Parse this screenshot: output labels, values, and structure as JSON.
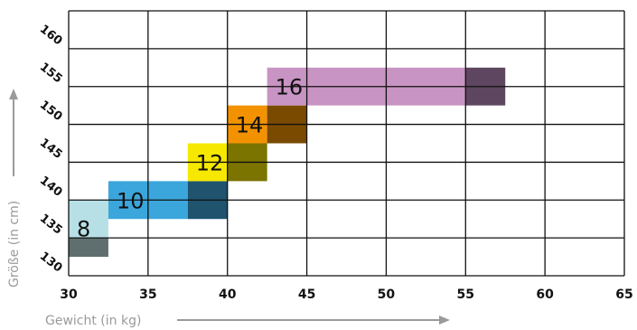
{
  "chart_data": {
    "type": "bar",
    "subtype": "size-range-boxes",
    "title": "",
    "xlabel": "Gewicht (in kg)",
    "ylabel": "Größe (in cm)",
    "xlim": [
      30,
      65
    ],
    "ylim": [
      130,
      165
    ],
    "x_ticks": [
      "30",
      "35",
      "40",
      "45",
      "50",
      "55",
      "60",
      "65"
    ],
    "y_ticks": [
      "130",
      "135",
      "140",
      "145",
      "150",
      "155",
      "160"
    ],
    "grid": true,
    "series": [
      {
        "label": "8",
        "height_range": [
          132.5,
          140
        ],
        "segments": [
          {
            "x": [
              30,
              32.5
            ],
            "y": [
              135,
              140
            ],
            "color": "#b7e0e6"
          },
          {
            "x": [
              30,
              32.5
            ],
            "y": [
              132.5,
              135
            ],
            "color": "#5f6f6f"
          }
        ]
      },
      {
        "label": "10",
        "height_range": [
          137.5,
          142.5
        ],
        "segments": [
          {
            "x": [
              32.5,
              37.5
            ],
            "y": [
              137.5,
              142.5
            ],
            "color": "#3ba6dc"
          },
          {
            "x": [
              37.5,
              40
            ],
            "y": [
              137.5,
              142.5
            ],
            "color": "#1f536e"
          }
        ]
      },
      {
        "label": "12",
        "height_range": [
          142.5,
          147.5
        ],
        "segments": [
          {
            "x": [
              37.5,
              40
            ],
            "y": [
              142.5,
              147.5
            ],
            "color": "#f6e800"
          },
          {
            "x": [
              40,
              42.5
            ],
            "y": [
              142.5,
              147.5
            ],
            "color": "#7b7400"
          }
        ]
      },
      {
        "label": "14",
        "height_range": [
          147.5,
          152.5
        ],
        "segments": [
          {
            "x": [
              40,
              42.5
            ],
            "y": [
              147.5,
              152.5
            ],
            "color": "#f39200"
          },
          {
            "x": [
              42.5,
              45
            ],
            "y": [
              147.5,
              152.5
            ],
            "color": "#7a4a00"
          }
        ]
      },
      {
        "label": "16",
        "height_range": [
          152.5,
          157.5
        ],
        "segments": [
          {
            "x": [
              42.5,
              55
            ],
            "y": [
              152.5,
              157.5
            ],
            "color": "#c894c3"
          },
          {
            "x": [
              55,
              57.5
            ],
            "y": [
              152.5,
              157.5
            ],
            "color": "#5e4660"
          }
        ]
      }
    ]
  }
}
